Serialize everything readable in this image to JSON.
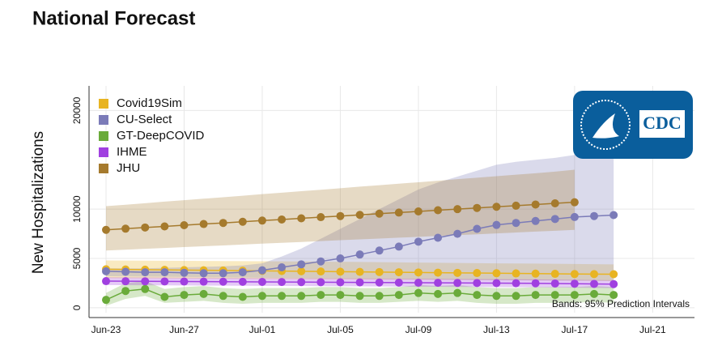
{
  "chart_data": {
    "type": "line",
    "title": "National Forecast",
    "y_label": "New Hospitalizations",
    "annotation": "Bands: 95% Prediction Intervals",
    "logo_text": "CDC",
    "legend": "upper left",
    "grid": true,
    "ylim": [
      -500,
      22500
    ],
    "yticks": [
      0,
      5000,
      10000,
      20000
    ],
    "categories": [
      "Jun-23",
      null,
      null,
      null,
      "Jun-27",
      null,
      null,
      null,
      "Jul-01",
      null,
      null,
      null,
      "Jul-05",
      null,
      null,
      null,
      "Jul-09",
      null,
      null,
      null,
      "Jul-13",
      null,
      null,
      null,
      "Jul-17",
      null,
      null,
      null,
      "Jul-21"
    ],
    "series": [
      {
        "name": "Covid19Sim",
        "color": "#e8b422",
        "values": [
          3900,
          3880,
          3860,
          3840,
          3820,
          3800,
          3780,
          3760,
          3740,
          3720,
          3700,
          3680,
          3660,
          3640,
          3620,
          3600,
          3580,
          3560,
          3540,
          3520,
          3500,
          3480,
          3460,
          3440,
          3420,
          3410,
          3400,
          null,
          null
        ],
        "lower": [
          3000,
          2990,
          2980,
          2970,
          2960,
          2950,
          2940,
          2930,
          2920,
          2910,
          2900,
          2890,
          2880,
          2870,
          2860,
          2850,
          2840,
          2830,
          2820,
          2810,
          2800,
          2790,
          2780,
          2760,
          2740,
          2720,
          2700,
          null,
          null
        ],
        "upper": [
          4800,
          4790,
          4780,
          4770,
          4760,
          4750,
          4740,
          4730,
          4720,
          4710,
          4700,
          4680,
          4660,
          4640,
          4620,
          4600,
          4580,
          4560,
          4540,
          4520,
          4500,
          4490,
          4480,
          4460,
          4440,
          4420,
          4400,
          null,
          null
        ]
      },
      {
        "name": "CU-Select",
        "color": "#7b7bb8",
        "values": [
          3700,
          3650,
          3600,
          3600,
          3550,
          3500,
          3500,
          3600,
          3800,
          4100,
          4400,
          4700,
          5000,
          5400,
          5800,
          6200,
          6700,
          7100,
          7500,
          8000,
          8400,
          8600,
          8800,
          9000,
          9200,
          9300,
          9400,
          null,
          null
        ],
        "lower": [
          3200,
          3180,
          3160,
          3140,
          3120,
          3100,
          3080,
          3060,
          3040,
          3020,
          3000,
          2980,
          2960,
          2940,
          2920,
          2900,
          2880,
          2860,
          2840,
          2820,
          2800,
          2790,
          2780,
          2770,
          2760,
          2750,
          2740,
          null,
          null
        ],
        "upper": [
          4000,
          4000,
          4000,
          4050,
          4100,
          4150,
          4200,
          4300,
          4500,
          5200,
          6000,
          7000,
          8000,
          9000,
          10000,
          11000,
          12000,
          12700,
          13300,
          13900,
          14500,
          14800,
          15000,
          15200,
          15500,
          15800,
          16000,
          null,
          null
        ]
      },
      {
        "name": "GT-DeepCOVID",
        "color": "#6aab3a",
        "values": [
          800,
          1700,
          1900,
          1100,
          1300,
          1400,
          1200,
          1100,
          1200,
          1200,
          1200,
          1300,
          1300,
          1200,
          1200,
          1300,
          1500,
          1400,
          1500,
          1300,
          1200,
          1200,
          1300,
          1300,
          1300,
          1400,
          1300,
          null,
          null
        ],
        "lower": [
          200,
          900,
          1200,
          500,
          600,
          700,
          500,
          400,
          500,
          500,
          500,
          600,
          600,
          500,
          500,
          600,
          700,
          600,
          700,
          500,
          400,
          400,
          500,
          500,
          500,
          600,
          500,
          null,
          null
        ],
        "upper": [
          1500,
          2500,
          2700,
          1900,
          2100,
          2200,
          2000,
          1900,
          2000,
          2000,
          2000,
          2100,
          2100,
          2000,
          2000,
          2100,
          2300,
          2200,
          2300,
          2100,
          2000,
          2000,
          2100,
          2100,
          2100,
          2200,
          2100,
          null,
          null
        ]
      },
      {
        "name": "IHME",
        "color": "#a040e0",
        "values": [
          2700,
          2690,
          2680,
          2670,
          2660,
          2650,
          2640,
          2630,
          2620,
          2610,
          2600,
          2590,
          2580,
          2570,
          2560,
          2550,
          2540,
          2530,
          2520,
          2510,
          2500,
          2490,
          2480,
          2460,
          2440,
          2420,
          2400,
          null,
          null
        ],
        "lower": [
          2300,
          2290,
          2280,
          2270,
          2260,
          2250,
          2240,
          2230,
          2220,
          2210,
          2200,
          2190,
          2180,
          2170,
          2160,
          2150,
          2140,
          2130,
          2120,
          2110,
          2100,
          2090,
          2080,
          2060,
          2040,
          2020,
          2000,
          null,
          null
        ],
        "upper": [
          3100,
          3090,
          3080,
          3070,
          3060,
          3050,
          3040,
          3030,
          3020,
          3010,
          3000,
          2990,
          2980,
          2970,
          2960,
          2950,
          2940,
          2930,
          2920,
          2910,
          2900,
          2890,
          2880,
          2860,
          2840,
          2820,
          2800,
          null,
          null
        ]
      },
      {
        "name": "JHU",
        "color": "#a57a2d",
        "values": [
          7900,
          8020,
          8140,
          8250,
          8370,
          8490,
          8600,
          8720,
          8840,
          8950,
          9070,
          9190,
          9300,
          9420,
          9540,
          9650,
          9770,
          9890,
          10000,
          10120,
          10240,
          10350,
          10470,
          10590,
          10700,
          null,
          null,
          null,
          null
        ],
        "lower": [
          5800,
          5890,
          5980,
          6060,
          6150,
          6240,
          6320,
          6410,
          6500,
          6580,
          6670,
          6760,
          6850,
          6930,
          7020,
          7110,
          7190,
          7280,
          7370,
          7450,
          7540,
          7630,
          7720,
          7810,
          7900,
          null,
          null,
          null,
          null
        ],
        "upper": [
          10300,
          10450,
          10600,
          10760,
          10910,
          11060,
          11210,
          11360,
          11520,
          11670,
          11820,
          11970,
          12120,
          12280,
          12430,
          12580,
          12730,
          12880,
          13040,
          13190,
          13340,
          13490,
          13640,
          13800,
          14000,
          null,
          null,
          null,
          null
        ]
      }
    ]
  }
}
